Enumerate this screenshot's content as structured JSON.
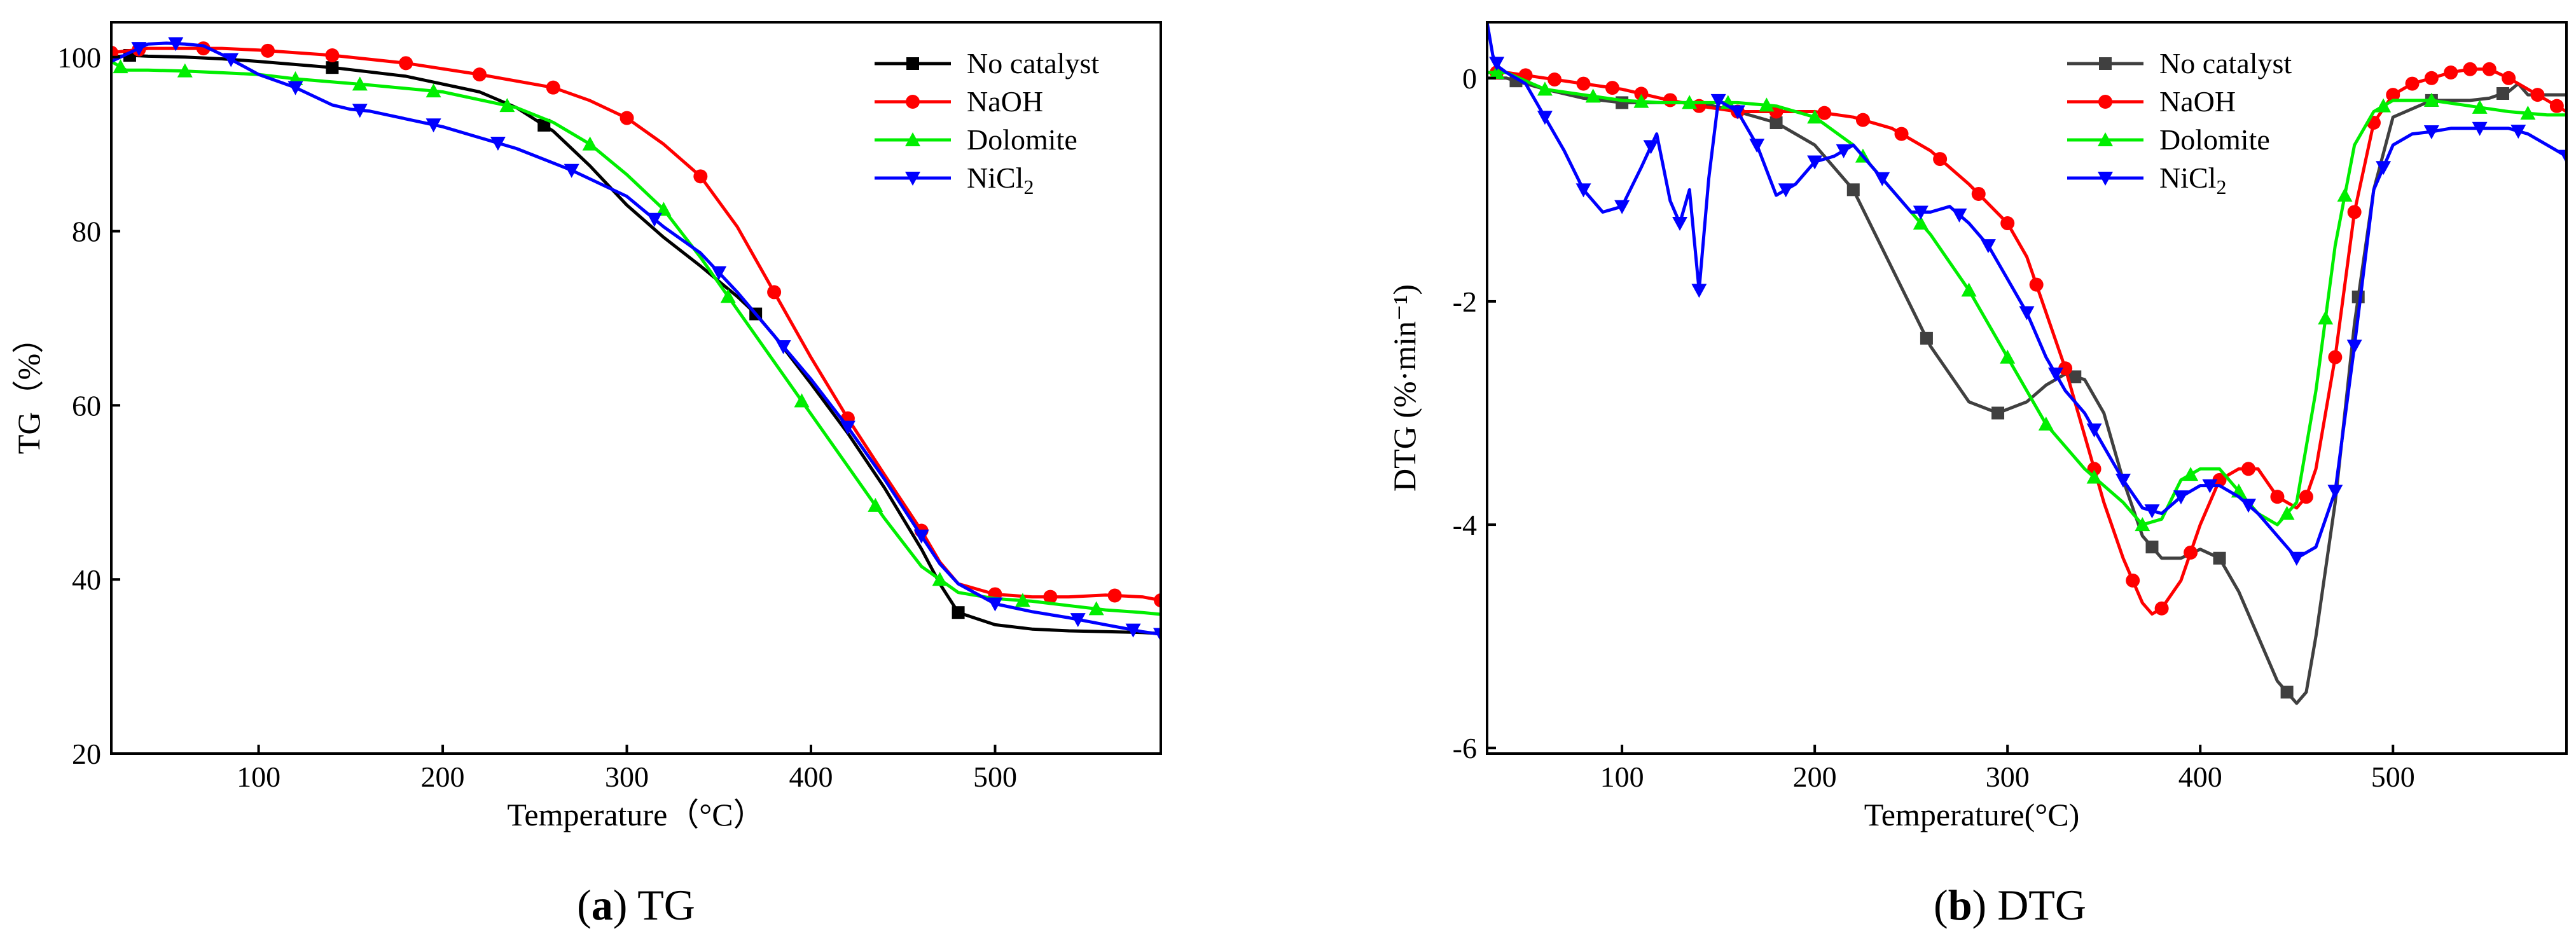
{
  "colors": {
    "no_catalyst": "#000000",
    "no_catalyst_dtg": "#404040",
    "naoh": "#ff0000",
    "dolomite": "#00ee00",
    "nicl2": "#0000ff"
  },
  "chart_data": [
    {
      "type": "line",
      "panel_id": "a",
      "caption": {
        "letter": "a",
        "text": "TG"
      },
      "xlabel": "Temperature（°C）",
      "ylabel": "TG（%）",
      "xlim": [
        20,
        590
      ],
      "ylim": [
        20,
        104
      ],
      "xticks": [
        100,
        200,
        300,
        400,
        500
      ],
      "yticks": [
        20,
        40,
        60,
        80,
        100
      ],
      "legend_position": "top-right",
      "series": [
        {
          "name": "No catalyst",
          "marker": "square",
          "color_key": "no_catalyst",
          "x": [
            20,
            30,
            40,
            60,
            80,
            100,
            140,
            180,
            220,
            240,
            260,
            280,
            300,
            320,
            340,
            360,
            370,
            380,
            400,
            420,
            440,
            460,
            470,
            480,
            500,
            520,
            540,
            560,
            580,
            590
          ],
          "y": [
            100,
            100.2,
            100.1,
            100,
            99.8,
            99.5,
            98.8,
            97.8,
            96,
            94.2,
            91.5,
            87.5,
            83,
            79.3,
            76,
            72.5,
            70.5,
            68,
            62.5,
            56.8,
            50.5,
            43.5,
            39.5,
            36.2,
            34.8,
            34.3,
            34.1,
            34.0,
            33.9,
            33.8
          ],
          "markers_x": [
            30,
            140,
            255,
            370,
            480
          ]
        },
        {
          "name": "NaOH",
          "marker": "circle",
          "color_key": "naoh",
          "x": [
            20,
            40,
            60,
            80,
            100,
            140,
            180,
            220,
            260,
            280,
            300,
            320,
            340,
            360,
            380,
            400,
            420,
            440,
            460,
            470,
            480,
            500,
            520,
            540,
            560,
            580,
            590
          ],
          "y": [
            100.5,
            101,
            101,
            101,
            100.8,
            100.2,
            99.3,
            98,
            96.5,
            95,
            93,
            90,
            86.3,
            80.5,
            73,
            65.5,
            58.5,
            52,
            45.6,
            42,
            39.5,
            38.3,
            38,
            38,
            38.2,
            38,
            37.6
          ],
          "markers_x": [
            20,
            35,
            70,
            105,
            140,
            180,
            220,
            260,
            300,
            340,
            380,
            420,
            460,
            500,
            530,
            565,
            590
          ]
        },
        {
          "name": "Dolomite",
          "marker": "triangle-up",
          "color_key": "dolomite",
          "x": [
            20,
            28,
            40,
            60,
            80,
            100,
            120,
            160,
            200,
            240,
            260,
            280,
            300,
            320,
            340,
            360,
            380,
            400,
            420,
            440,
            460,
            480,
            500,
            520,
            540,
            560,
            580,
            590
          ],
          "y": [
            99.5,
            98.5,
            98.5,
            98.4,
            98.2,
            98,
            97.5,
            96.8,
            96,
            94.2,
            92.5,
            90,
            86.5,
            82.5,
            77,
            71,
            65,
            59,
            53,
            47,
            41.5,
            38.5,
            37.8,
            37.5,
            37,
            36.5,
            36.2,
            36
          ],
          "markers_x": [
            25,
            60,
            120,
            155,
            195,
            235,
            280,
            320,
            355,
            395,
            435,
            470,
            515,
            555
          ]
        },
        {
          "name": "NiCl2",
          "marker": "triangle-down",
          "color_key": "nicl2",
          "x": [
            20,
            30,
            40,
            50,
            60,
            70,
            80,
            100,
            120,
            140,
            150,
            160,
            200,
            240,
            270,
            300,
            320,
            340,
            360,
            380,
            400,
            420,
            440,
            460,
            470,
            480,
            500,
            520,
            540,
            560,
            580,
            590
          ],
          "y": [
            99.5,
            100.5,
            101.5,
            101.6,
            101.5,
            101.3,
            100.3,
            98,
            96.5,
            94.5,
            94,
            93.8,
            92,
            89.5,
            87,
            84,
            80.5,
            77.5,
            73,
            68,
            63,
            57.5,
            51.5,
            45,
            41.8,
            39.5,
            37.2,
            36.3,
            35.6,
            34.8,
            34,
            33.7
          ],
          "markers_x": [
            35,
            55,
            85,
            120,
            155,
            195,
            230,
            270,
            315,
            350,
            385,
            420,
            460,
            500,
            545,
            575,
            590
          ]
        }
      ]
    },
    {
      "type": "line",
      "panel_id": "b",
      "caption": {
        "letter": "b",
        "text": "DTG"
      },
      "xlabel": "Temperature(°C)",
      "ylabel": "DTG (%·min⁻¹)",
      "xlim": [
        30,
        590
      ],
      "ylim": [
        -6.05,
        0.5
      ],
      "xticks": [
        100,
        200,
        300,
        400,
        500
      ],
      "yticks": [
        0,
        -2,
        -4,
        -6
      ],
      "legend_position": "top-right",
      "series": [
        {
          "name": "No catalyst",
          "marker": "square",
          "color_key": "no_catalyst_dtg",
          "x": [
            30,
            40,
            60,
            80,
            100,
            120,
            140,
            160,
            180,
            200,
            220,
            240,
            260,
            280,
            295,
            310,
            320,
            330,
            340,
            350,
            360,
            370,
            380,
            390,
            400,
            410,
            420,
            430,
            440,
            450,
            455,
            460,
            470,
            480,
            490,
            500,
            520,
            540,
            550,
            560,
            565,
            570,
            580,
            590
          ],
          "y": [
            0,
            0,
            -0.1,
            -0.18,
            -0.22,
            -0.22,
            -0.22,
            -0.3,
            -0.4,
            -0.6,
            -1.0,
            -1.7,
            -2.4,
            -2.9,
            -3.0,
            -2.9,
            -2.75,
            -2.65,
            -2.7,
            -3.0,
            -3.6,
            -4.1,
            -4.3,
            -4.3,
            -4.22,
            -4.3,
            -4.6,
            -5.0,
            -5.4,
            -5.6,
            -5.5,
            -5.0,
            -3.8,
            -2.2,
            -1.0,
            -0.35,
            -0.2,
            -0.2,
            -0.18,
            -0.12,
            -0.05,
            -0.15,
            -0.15,
            -0.15
          ],
          "markers_x": [
            45,
            100,
            180,
            220,
            258,
            295,
            335,
            375,
            410,
            445,
            482,
            520,
            557
          ]
        },
        {
          "name": "NaOH",
          "marker": "circle",
          "color_key": "naoh",
          "x": [
            30,
            40,
            60,
            80,
            100,
            120,
            140,
            160,
            180,
            200,
            220,
            240,
            260,
            280,
            300,
            310,
            320,
            330,
            340,
            350,
            360,
            370,
            375,
            380,
            390,
            400,
            410,
            420,
            430,
            440,
            450,
            455,
            460,
            470,
            480,
            490,
            500,
            510,
            520,
            530,
            540,
            550,
            560,
            570,
            580,
            590
          ],
          "y": [
            0.05,
            0.05,
            0,
            -0.05,
            -0.1,
            -0.18,
            -0.25,
            -0.3,
            -0.3,
            -0.3,
            -0.35,
            -0.45,
            -0.65,
            -0.95,
            -1.3,
            -1.6,
            -2.1,
            -2.6,
            -3.2,
            -3.8,
            -4.3,
            -4.7,
            -4.8,
            -4.75,
            -4.5,
            -4.0,
            -3.6,
            -3.5,
            -3.5,
            -3.75,
            -3.85,
            -3.75,
            -3.5,
            -2.5,
            -1.2,
            -0.4,
            -0.15,
            -0.05,
            0.0,
            0.05,
            0.08,
            0.08,
            0.0,
            -0.1,
            -0.2,
            -0.3
          ],
          "markers_x": [
            35,
            50,
            65,
            80,
            95,
            110,
            125,
            140,
            160,
            180,
            205,
            225,
            245,
            265,
            285,
            300,
            315,
            330,
            345,
            365,
            380,
            395,
            410,
            425,
            440,
            455,
            470,
            480,
            490,
            500,
            510,
            520,
            530,
            540,
            550,
            560,
            575,
            585
          ]
        },
        {
          "name": "Dolomite",
          "marker": "triangle-up",
          "color_key": "dolomite",
          "x": [
            30,
            40,
            60,
            80,
            100,
            120,
            140,
            160,
            180,
            200,
            220,
            240,
            260,
            280,
            300,
            320,
            340,
            360,
            370,
            380,
            390,
            400,
            410,
            420,
            430,
            440,
            450,
            460,
            470,
            480,
            490,
            500,
            520,
            540,
            560,
            580,
            590
          ],
          "y": [
            0.05,
            0.05,
            -0.1,
            -0.15,
            -0.2,
            -0.22,
            -0.22,
            -0.22,
            -0.25,
            -0.35,
            -0.6,
            -1.0,
            -1.4,
            -1.9,
            -2.5,
            -3.1,
            -3.5,
            -3.8,
            -4.0,
            -3.95,
            -3.6,
            -3.5,
            -3.5,
            -3.7,
            -3.9,
            -4.0,
            -3.8,
            -2.8,
            -1.5,
            -0.6,
            -0.3,
            -0.2,
            -0.2,
            -0.25,
            -0.3,
            -0.33,
            -0.33
          ],
          "markers_x": [
            35,
            60,
            85,
            110,
            135,
            155,
            175,
            200,
            225,
            255,
            280,
            300,
            320,
            345,
            370,
            395,
            420,
            445,
            465,
            475,
            495,
            520,
            545,
            570
          ]
        },
        {
          "name": "NiCl2",
          "marker": "triangle-down",
          "color_key": "nicl2",
          "x": [
            30,
            33,
            36,
            40,
            45,
            50,
            60,
            70,
            80,
            90,
            100,
            110,
            118,
            125,
            130,
            135,
            140,
            145,
            150,
            155,
            160,
            170,
            180,
            190,
            200,
            210,
            220,
            230,
            240,
            250,
            260,
            270,
            280,
            290,
            300,
            310,
            320,
            330,
            340,
            350,
            360,
            370,
            380,
            390,
            400,
            410,
            420,
            430,
            440,
            450,
            460,
            470,
            480,
            490,
            500,
            510,
            520,
            530,
            540,
            550,
            560,
            570,
            580,
            590
          ],
          "y": [
            0.5,
            0.2,
            0.1,
            0.05,
            0,
            -0.05,
            -0.35,
            -0.65,
            -1.0,
            -1.2,
            -1.15,
            -0.8,
            -0.5,
            -1.1,
            -1.3,
            -1.0,
            -1.9,
            -0.9,
            -0.2,
            -0.25,
            -0.3,
            -0.6,
            -1.05,
            -0.95,
            -0.75,
            -0.7,
            -0.6,
            -0.8,
            -1.0,
            -1.2,
            -1.2,
            -1.15,
            -1.3,
            -1.5,
            -1.8,
            -2.1,
            -2.5,
            -2.8,
            -3.0,
            -3.3,
            -3.6,
            -3.85,
            -3.9,
            -3.75,
            -3.65,
            -3.65,
            -3.75,
            -3.9,
            -4.1,
            -4.3,
            -4.2,
            -3.7,
            -2.4,
            -1.0,
            -0.6,
            -0.5,
            -0.48,
            -0.45,
            -0.45,
            -0.45,
            -0.45,
            -0.5,
            -0.6,
            -0.7
          ],
          "markers_x": [
            35,
            60,
            80,
            100,
            115,
            130,
            140,
            150,
            160,
            170,
            185,
            200,
            215,
            235,
            255,
            275,
            290,
            310,
            325,
            345,
            360,
            375,
            390,
            405,
            425,
            450,
            470,
            480,
            495,
            520,
            545,
            565,
            590
          ]
        }
      ]
    }
  ]
}
